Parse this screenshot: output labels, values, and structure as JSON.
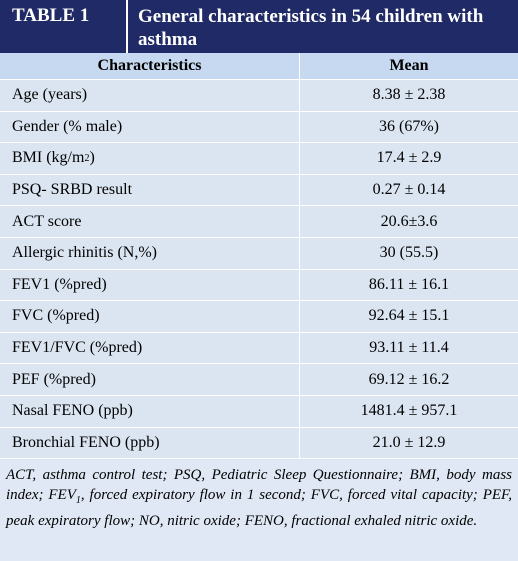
{
  "header": {
    "label": "TABLE 1",
    "title": "General characteristics in 54 children with asthma"
  },
  "table": {
    "columns": [
      "Characteristics",
      "Mean"
    ],
    "rows": [
      [
        [
          "Age (years)"
        ],
        "8.38 ± 2.38"
      ],
      [
        [
          "Gender (% male)"
        ],
        "36 (67%)"
      ],
      [
        [
          "BMI (kg/m",
          "2",
          ")"
        ],
        "17.4 ± 2.9"
      ],
      [
        [
          "PSQ- SRBD result"
        ],
        "0.27 ± 0.14"
      ],
      [
        [
          "ACT score"
        ],
        "20.6±3.6"
      ],
      [
        [
          "Allergic rhinitis (N,%)"
        ],
        "30 (55.5)"
      ],
      [
        [
          "FEV1 (%pred)"
        ],
        "86.11 ± 16.1"
      ],
      [
        [
          "FVC (%pred)"
        ],
        "92.64 ± 15.1"
      ],
      [
        [
          "FEV1/FVC (%pred)"
        ],
        "93.11 ± 11.4"
      ],
      [
        [
          "PEF (%pred)"
        ],
        "69.12 ± 16.2"
      ],
      [
        [
          "Nasal FENO (ppb)"
        ],
        "1481.4 ± 957.1"
      ],
      [
        [
          "Bronchial FENO (ppb)"
        ],
        "21.0 ± 12.9"
      ]
    ]
  },
  "footnote": [
    "ACT, asthma control test; PSQ, Pediatric Sleep Questionnaire; BMI, body mass index; FEV",
    "1",
    ", forced expiratory flow in 1 second; FVC, forced vital capacity; PEF, peak expiratory flow; NO, nitric oxide; FENO, fractional exhaled nitric oxide."
  ]
}
